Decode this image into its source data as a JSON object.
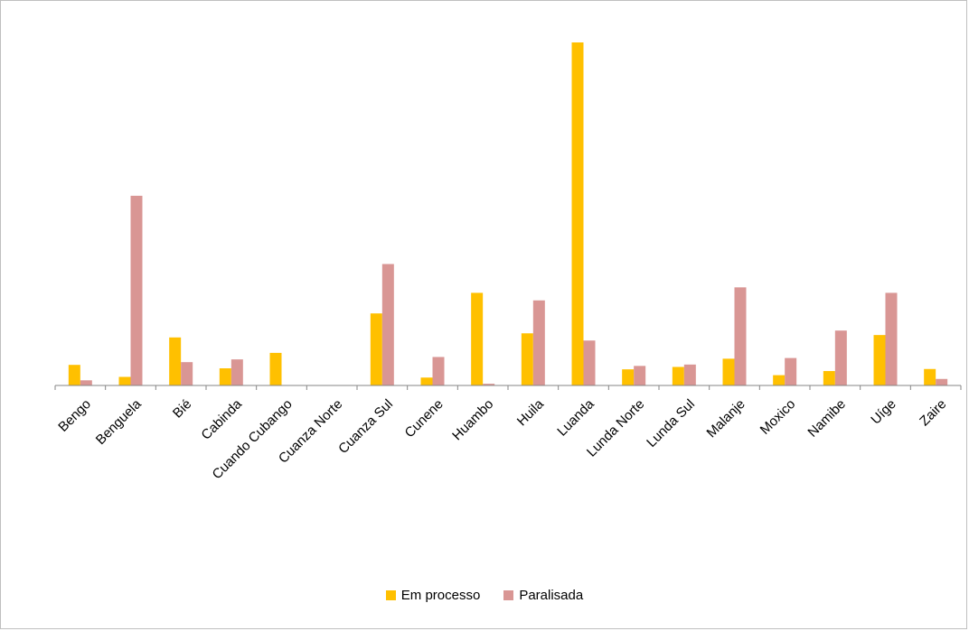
{
  "chart_data": {
    "type": "bar",
    "title": "",
    "xlabel": "",
    "ylabel": "",
    "ylim": [
      0,
      100
    ],
    "grid": false,
    "legend_position": "bottom",
    "categories": [
      "Bengo",
      "Benguela",
      "Bié",
      "Cabinda",
      "Cuando Cubango",
      "Cuanza Norte",
      "Cuanza Sul",
      "Cunene",
      "Huambo",
      "Huila",
      "Luanda",
      "Lunda Norte",
      "Lunda Sul",
      "Malanje",
      "Moxico",
      "Namibe",
      "Uíge",
      "Zaire"
    ],
    "series": [
      {
        "name": "Em processo",
        "color": "#ffc000",
        "values": [
          6,
          2.5,
          14,
          5,
          9.5,
          0,
          21,
          2.3,
          27,
          15.2,
          100,
          4.7,
          5.4,
          7.8,
          3,
          4.2,
          14.7,
          4.8
        ]
      },
      {
        "name": "Paralisada",
        "color": "#d99694",
        "values": [
          1.5,
          55.3,
          6.8,
          7.6,
          0,
          0,
          35.4,
          8.3,
          0.5,
          24.8,
          13.1,
          5.7,
          6.1,
          28.6,
          8,
          16,
          27,
          1.9
        ]
      }
    ]
  }
}
